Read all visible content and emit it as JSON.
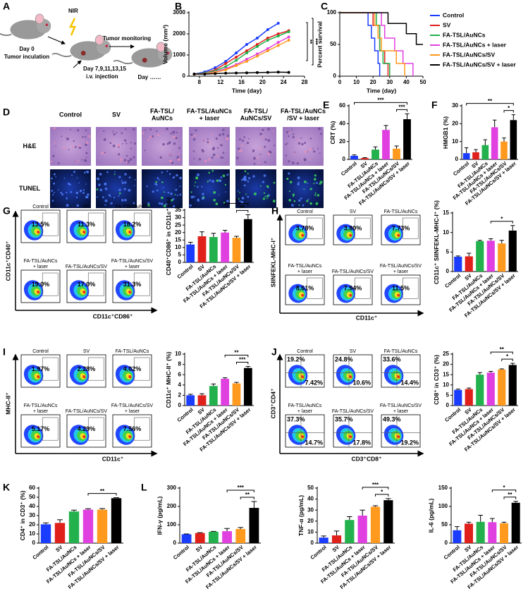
{
  "panel_letters": [
    "A",
    "B",
    "C",
    "D",
    "E",
    "F",
    "G",
    "H",
    "I",
    "J",
    "K",
    "L"
  ],
  "schematic": {
    "nir": "NIR",
    "day0": "Day 0",
    "inoculation": "Tumor inculation",
    "injection_days": "Day 7,9,11,13,15",
    "injection": "i.v. injection",
    "monitoring": "Tumor monitoring",
    "day_end": "Day ……"
  },
  "histology": {
    "columns": [
      [
        "Control"
      ],
      [
        "SV"
      ],
      [
        "FA-TSL/",
        "AuNCs"
      ],
      [
        "FA-TSL/AuNCs",
        "+ laser"
      ],
      [
        "FA-TSL/",
        "AuNCs/SV"
      ],
      [
        "FA-TSL/AuNCs",
        "/SV + laser"
      ]
    ],
    "rows": [
      "H&E",
      "TUNEL"
    ]
  },
  "flow": [
    {
      "ylabel": "CD11c⁺CD40⁺",
      "xlabel": "CD11c⁺CD86⁺",
      "plots": [
        {
          "title": [
            "Control"
          ],
          "percent": [
            "13.5%"
          ]
        },
        {
          "title": [
            "SV"
          ],
          "percent": [
            "11.3%"
          ]
        },
        {
          "title": [
            "FA-TSL/AuNCs"
          ],
          "percent": [
            "18.2%"
          ]
        },
        {
          "title": [
            "FA-TSL/AuNCs",
            "+ laser"
          ],
          "percent": [
            "19.0%"
          ]
        },
        {
          "title": [
            "FA-TSL/AuNCs/SV"
          ],
          "percent": [
            "17.0%"
          ]
        },
        {
          "title": [
            "FA-TSL/AuNCs/SV",
            "+ laser"
          ],
          "percent": [
            "31.3%"
          ]
        }
      ]
    },
    {
      "ylabel": "SIINFEKL-MHC-I⁺",
      "xlabel": "CD11c⁺",
      "plots": [
        {
          "title": [
            "Control"
          ],
          "percent": [
            "3.78%"
          ]
        },
        {
          "title": [
            "SV"
          ],
          "percent": [
            "3.80%"
          ]
        },
        {
          "title": [
            "FA-TSL/AuNCs"
          ],
          "percent": [
            "7.73%"
          ]
        },
        {
          "title": [
            "FA-TSL/AuNCs",
            "+ laser"
          ],
          "percent": [
            "8.61%"
          ]
        },
        {
          "title": [
            "FA-TSL/AuNCs/SV"
          ],
          "percent": [
            "7.94%"
          ]
        },
        {
          "title": [
            "FA-TSL/AuNCs/SV",
            "+ laser"
          ],
          "percent": [
            "11.5%"
          ]
        }
      ]
    },
    {
      "ylabel": "MHC-II⁺",
      "xlabel": "CD11c⁺",
      "plots": [
        {
          "title": [
            "Control"
          ],
          "percent": [
            "1.97%"
          ]
        },
        {
          "title": [
            "SV"
          ],
          "percent": [
            "2.28%"
          ]
        },
        {
          "title": [
            "FA-TSL/AuNCs"
          ],
          "percent": [
            "4.02%"
          ]
        },
        {
          "title": [
            "FA-TSL/AuNCs",
            "+ laser"
          ],
          "percent": [
            "5.17%"
          ]
        },
        {
          "title": [
            "FA-TSL/AuNCs/SV"
          ],
          "percent": [
            "4.29%"
          ]
        },
        {
          "title": [
            "FA-TSL/AuNCs/SV",
            "+ laser"
          ],
          "percent": [
            "7.56%"
          ]
        }
      ]
    },
    {
      "ylabel": "CD3⁺CD4⁺",
      "xlabel": "CD3⁺CD8⁺",
      "plots": [
        {
          "title": [
            "Control"
          ],
          "percent": [
            "19.2%",
            "7.42%"
          ]
        },
        {
          "title": [
            "SV"
          ],
          "percent": [
            "24.8%",
            "10.6%"
          ]
        },
        {
          "title": [
            "FA-TSL/AuNCs"
          ],
          "percent": [
            "33.6%",
            "14.4%"
          ]
        },
        {
          "title": [
            "FA-TSL/AuNCs",
            "+ laser"
          ],
          "percent": [
            "37.3%",
            "14.7%"
          ]
        },
        {
          "title": [
            "FA-TSL/AuNCs/SV"
          ],
          "percent": [
            "35.7%",
            "17.8%"
          ]
        },
        {
          "title": [
            "FA-TSL/AuNCs/SV",
            "+ laser"
          ],
          "percent": [
            "49.3%",
            "19.2%"
          ]
        }
      ]
    }
  ],
  "chart_data": [
    {
      "type": "line",
      "ylabel": "Volume (mm³)",
      "xlabel": "Time (day)",
      "markers": true,
      "x": [
        7,
        9,
        11,
        13,
        15,
        17,
        19,
        21,
        23,
        25
      ],
      "xlim": [
        6,
        28
      ],
      "xticks": [
        8,
        12,
        16,
        20,
        24,
        28
      ],
      "ylim": [
        0,
        3000
      ],
      "yticks": [
        0,
        1000,
        2000,
        3000
      ],
      "significance_labels": [
        "**",
        "***"
      ],
      "series": [
        {
          "name": "Control",
          "color": "#1a3cff",
          "values": [
            100,
            200,
            400,
            700,
            1100,
            1500,
            1800,
            2200,
            2500,
            null
          ]
        },
        {
          "name": "SV",
          "color": "#e0201b",
          "values": [
            100,
            150,
            300,
            600,
            900,
            1200,
            1500,
            1800,
            2000,
            2150
          ]
        },
        {
          "name": "FA-TSL/AuNCs",
          "color": "#22b14c",
          "values": [
            100,
            150,
            250,
            450,
            750,
            1100,
            1400,
            1700,
            1900,
            2100
          ]
        },
        {
          "name": "FA-TSL/AuNCs + laser",
          "color": "#e040e0",
          "values": [
            100,
            120,
            200,
            350,
            550,
            800,
            1050,
            1300,
            1600,
            1850
          ]
        },
        {
          "name": "FA-TSL/AuNCs/SV",
          "color": "#ff9a1f",
          "values": [
            100,
            110,
            180,
            300,
            500,
            700,
            950,
            1200,
            1450,
            1700
          ]
        },
        {
          "name": "FA-TSL/AuNCs/SV + laser",
          "color": "#000000",
          "values": [
            100,
            100,
            120,
            140,
            150,
            160,
            170,
            180,
            190,
            180
          ]
        }
      ]
    },
    {
      "type": "line",
      "ylabel": "Percent survival",
      "xlabel": "Time (day)",
      "legend": "right",
      "xlim": [
        0,
        50
      ],
      "xticks": [
        0,
        10,
        20,
        30,
        40,
        50
      ],
      "ylim": [
        0,
        100
      ],
      "yticks": [
        0,
        50,
        100
      ],
      "series": [
        {
          "name": "Control",
          "color": "#1a3cff",
          "x": [
            0,
            17,
            17,
            19,
            19,
            21,
            21,
            23,
            23,
            24,
            24
          ],
          "values": [
            100,
            100,
            80,
            80,
            60,
            60,
            40,
            40,
            20,
            20,
            0
          ]
        },
        {
          "name": "SV",
          "color": "#e0201b",
          "x": [
            0,
            20,
            20,
            24,
            24,
            27,
            27,
            29,
            29
          ],
          "values": [
            100,
            100,
            80,
            80,
            40,
            40,
            20,
            20,
            0
          ]
        },
        {
          "name": "FA-TSL/AuNCs",
          "color": "#22b14c",
          "x": [
            0,
            22,
            22,
            24,
            24,
            26,
            26,
            30,
            30
          ],
          "values": [
            100,
            100,
            80,
            80,
            40,
            40,
            20,
            20,
            0
          ]
        },
        {
          "name": "FA-TSL/AuNCs + laser",
          "color": "#e040e0",
          "x": [
            0,
            25,
            25,
            27,
            27,
            33,
            33,
            38,
            38,
            44,
            44
          ],
          "values": [
            100,
            100,
            80,
            80,
            60,
            60,
            40,
            40,
            20,
            20,
            0
          ]
        },
        {
          "name": "FA-TSL/AuNCs/SV",
          "color": "#ff9a1f",
          "x": [
            0,
            21,
            21,
            23,
            23,
            25,
            25,
            34,
            34,
            39,
            39
          ],
          "values": [
            100,
            100,
            80,
            80,
            60,
            60,
            40,
            40,
            20,
            20,
            0
          ]
        },
        {
          "name": "FA-TSL/AuNCs/SV + laser",
          "color": "#000000",
          "x": [
            0,
            29,
            29,
            40,
            40,
            46,
            46,
            50
          ],
          "values": [
            100,
            100,
            83,
            83,
            67,
            67,
            50,
            50
          ]
        }
      ]
    },
    {
      "type": "bar",
      "ylabel": "CRT (%)",
      "categories": [
        "Control",
        "SV",
        "FA-TSL/AuNCs",
        "FA-TSL/AuNCs + laser",
        "FA-TSL/AuNCs/SV",
        "FA-TSL/AuNCs/SV + laser"
      ],
      "colors": [
        "#1a3cff",
        "#e0201b",
        "#22b14c",
        "#e040e0",
        "#ff9a1f",
        "#000000"
      ],
      "values": [
        4,
        1.5,
        11,
        33,
        12,
        45
      ],
      "errors": [
        1,
        0.5,
        3,
        5,
        3,
        6
      ],
      "ylim": [
        0,
        60
      ],
      "yticks": [
        0,
        20,
        40,
        60
      ],
      "significance": [
        {
          "label": "***",
          "between": [
            0,
            5
          ]
        },
        {
          "label": "***",
          "between": [
            4,
            5
          ]
        }
      ]
    },
    {
      "type": "bar",
      "ylabel": "HMGB1 (%)",
      "categories": [
        "Control",
        "SV",
        "FA-TSL/AuNCs",
        "FA-TSL/AuNCs + laser",
        "FA-TSL/AuNCs/SV",
        "FA-TSL/AuNCs/SV + laser"
      ],
      "colors": [
        "#1a3cff",
        "#e0201b",
        "#22b14c",
        "#e040e0",
        "#ff9a1f",
        "#000000"
      ],
      "values": [
        3.5,
        4,
        8,
        18,
        10,
        22
      ],
      "errors": [
        3,
        1.5,
        3,
        4,
        2,
        3
      ],
      "ylim": [
        0,
        30
      ],
      "yticks": [
        0,
        10,
        20,
        30
      ],
      "significance": [
        {
          "label": "**",
          "between": [
            0,
            5
          ]
        },
        {
          "label": "*",
          "between": [
            4,
            5
          ]
        }
      ]
    },
    {
      "type": "bar",
      "ylabel": "CD40⁺CD86⁺ in CD11c⁺ (%)",
      "categories": [
        "Control",
        "SV",
        "FA-TSL/AuNCs",
        "FA-TSL/AuNCs + laser",
        "FA-TSL/AuNCs/SV",
        "FA-TSL/AuNCs/SV + laser"
      ],
      "colors": [
        "#1a3cff",
        "#e0201b",
        "#22b14c",
        "#e040e0",
        "#ff9a1f",
        "#000000"
      ],
      "values": [
        12,
        17.5,
        17,
        20,
        16.5,
        29
      ],
      "errors": [
        1.5,
        3,
        2.5,
        1.5,
        1,
        3
      ],
      "ylim": [
        0,
        35
      ],
      "yticks": [
        0,
        5,
        10,
        15,
        20,
        25,
        30,
        35
      ],
      "significance": [
        {
          "label": "*",
          "between": [
            3,
            5
          ]
        },
        {
          "label": "**",
          "between": [
            4,
            5
          ]
        }
      ]
    },
    {
      "type": "bar",
      "ylabel": "CD11c⁺ SIINFEKL-MHC-I⁺ (%)",
      "categories": [
        "Control",
        "SV",
        "FA-TSL/AuNCs",
        "FA-TSL/AuNCs + laser",
        "FA-TSL/AuNCs/SV",
        "FA-TSL/AuNCs/SV + laser"
      ],
      "colors": [
        "#1a3cff",
        "#e0201b",
        "#22b14c",
        "#e040e0",
        "#ff9a1f",
        "#000000"
      ],
      "values": [
        3.8,
        3.9,
        7.8,
        7.9,
        7.2,
        10.5
      ],
      "errors": [
        0.2,
        0.8,
        0.2,
        0.5,
        0.8,
        1.3
      ],
      "ylim": [
        0,
        15
      ],
      "yticks": [
        0,
        5,
        10,
        15
      ],
      "significance": [
        {
          "label": "*",
          "between": [
            3,
            5
          ]
        }
      ]
    },
    {
      "type": "bar",
      "ylabel": "CD11c⁺ MHC-II⁺ (%)",
      "categories": [
        "Control",
        "SV",
        "FA-TSL/AuNCs",
        "FA-TSL/AuNCs + laser",
        "FA-TSL/AuNCs/SV",
        "FA-TSL/AuNCs/SV + laser"
      ],
      "colors": [
        "#1a3cff",
        "#e0201b",
        "#22b14c",
        "#e040e0",
        "#ff9a1f",
        "#000000"
      ],
      "values": [
        2.0,
        2.0,
        3.8,
        5.2,
        4.3,
        7.3
      ],
      "errors": [
        0.2,
        0.3,
        0.4,
        0.2,
        0.2,
        0.3
      ],
      "ylim": [
        0,
        10
      ],
      "yticks": [
        0,
        2,
        4,
        6,
        8,
        10
      ],
      "significance": [
        {
          "label": "**",
          "between": [
            3,
            5
          ]
        },
        {
          "label": "***",
          "between": [
            4,
            5
          ]
        }
      ]
    },
    {
      "type": "bar",
      "ylabel": "CD8⁺ in CD3⁺ (%)",
      "categories": [
        "Control",
        "SV",
        "FA-TSL/AuNCs",
        "FA-TSL/AuNCs + laser",
        "FA-TSL/AuNCs/SV",
        "FA-TSL/AuNCs/SV + laser"
      ],
      "colors": [
        "#1a3cff",
        "#e0201b",
        "#22b14c",
        "#e040e0",
        "#ff9a1f",
        "#000000"
      ],
      "values": [
        7.6,
        8.0,
        15,
        16,
        17.5,
        19.7
      ],
      "errors": [
        0.4,
        0.5,
        1,
        0.6,
        0.3,
        0.8
      ],
      "ylim": [
        0,
        25
      ],
      "yticks": [
        0,
        5,
        10,
        15,
        20,
        25
      ],
      "significance": [
        {
          "label": "**",
          "between": [
            3,
            5
          ]
        },
        {
          "label": "*",
          "between": [
            4,
            5
          ]
        }
      ]
    },
    {
      "type": "bar",
      "ylabel": "CD4⁺ in CD3⁺ (%)",
      "categories": [
        "Control",
        "SV",
        "FA-TSL/AuNCs",
        "FA-TSL/AuNCs + laser",
        "FA-TSL/AuNCs/SV",
        "FA-TSL/AuNCs/SV + laser"
      ],
      "colors": [
        "#1a3cff",
        "#e0201b",
        "#22b14c",
        "#e040e0",
        "#ff9a1f",
        "#000000"
      ],
      "values": [
        20.5,
        22,
        34.5,
        36.5,
        36.5,
        49
      ],
      "errors": [
        1.5,
        3.5,
        1.5,
        1,
        1.2,
        0.5
      ],
      "ylim": [
        0,
        60
      ],
      "yticks": [
        0,
        10,
        20,
        30,
        40,
        50,
        60
      ],
      "significance": [
        {
          "label": "**",
          "between": [
            3,
            5
          ]
        }
      ]
    },
    {
      "type": "bar",
      "ylabel": "IFN-γ (pg/mL)",
      "categories": [
        "Control",
        "SV",
        "FA-TSL/AuNCs",
        "FA-TSL/AuNCs + laser",
        "FA-TSL/AuNCs/SV",
        "FA-TSL/AuNCs/SV + laser"
      ],
      "colors": [
        "#1a3cff",
        "#e0201b",
        "#22b14c",
        "#e040e0",
        "#ff9a1f",
        "#000000"
      ],
      "values": [
        48,
        55,
        62,
        65,
        77,
        192
      ],
      "errors": [
        2,
        2,
        2,
        15,
        8,
        35
      ],
      "ylim": [
        0,
        300
      ],
      "yticks": [
        0,
        100,
        200,
        300
      ],
      "significance": [
        {
          "label": "***",
          "between": [
            3,
            5
          ]
        },
        {
          "label": "**",
          "between": [
            4,
            5
          ]
        }
      ]
    },
    {
      "type": "bar",
      "ylabel": "TNF-α (pg/mL)",
      "categories": [
        "Control",
        "SV",
        "FA-TSL/AuNCs",
        "FA-TSL/AuNCs + laser",
        "FA-TSL/AuNCs/SV",
        "FA-TSL/AuNCs/SV + laser"
      ],
      "colors": [
        "#1a3cff",
        "#e0201b",
        "#22b14c",
        "#e040e0",
        "#ff9a1f",
        "#000000"
      ],
      "values": [
        5,
        7,
        21,
        25,
        33,
        39
      ],
      "errors": [
        1.5,
        4,
        3,
        5,
        1,
        1.5
      ],
      "ylim": [
        0,
        50
      ],
      "yticks": [
        0,
        10,
        20,
        30,
        40,
        50
      ],
      "significance": [
        {
          "label": "***",
          "between": [
            3,
            5
          ]
        },
        {
          "label": "*",
          "between": [
            4,
            5
          ]
        }
      ]
    },
    {
      "type": "bar",
      "ylabel": "IL-6 (pg/mL)",
      "categories": [
        "Control",
        "SV",
        "FA-TSL/AuNCs",
        "FA-TSL/AuNCs + laser",
        "FA-TSL/AuNCs/SV",
        "FA-TSL/AuNCs/SV + laser"
      ],
      "colors": [
        "#1a3cff",
        "#e0201b",
        "#22b14c",
        "#e040e0",
        "#ff9a1f",
        "#000000"
      ],
      "values": [
        35,
        53,
        58,
        57,
        54,
        110
      ],
      "errors": [
        10,
        4,
        18,
        10,
        3,
        4
      ],
      "ylim": [
        0,
        150
      ],
      "yticks": [
        0,
        50,
        100,
        150
      ],
      "significance": [
        {
          "label": "*",
          "between": [
            3,
            5
          ]
        },
        {
          "label": "**",
          "between": [
            4,
            5
          ]
        }
      ]
    }
  ]
}
